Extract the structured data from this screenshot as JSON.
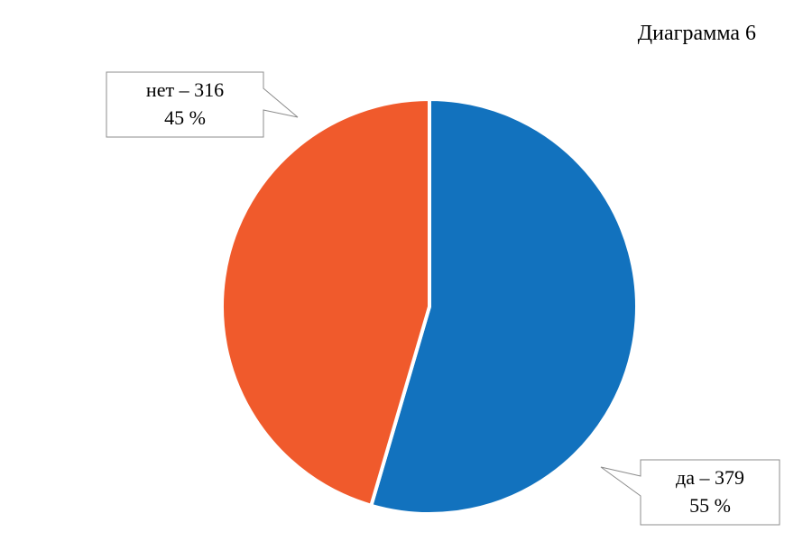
{
  "chart_data": {
    "type": "pie",
    "title": "Диаграмма 6",
    "slices": [
      {
        "category": "да",
        "value": 379,
        "percent_label": "55 %",
        "label_line1": "да – 379",
        "label_line2": "55 %",
        "color": "#1272BE"
      },
      {
        "category": "нет",
        "value": 316,
        "percent_label": "45 %",
        "label_line1": "нет – 316",
        "label_line2": "45 %",
        "color": "#F05A2C"
      }
    ],
    "legend": "none",
    "grid": false
  }
}
